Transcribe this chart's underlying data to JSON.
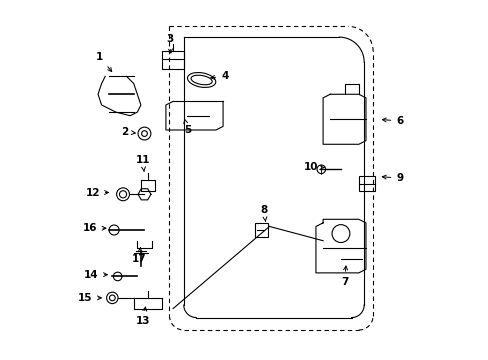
{
  "bg_color": "#ffffff",
  "line_color": "#000000",
  "label_positions": {
    "1": [
      0.095,
      0.845,
      0.04,
      -0.05
    ],
    "2": [
      0.165,
      0.635,
      0.04,
      -0.005
    ],
    "3": [
      0.29,
      0.895,
      0.005,
      -0.05
    ],
    "4": [
      0.445,
      0.79,
      -0.05,
      -0.005
    ],
    "5": [
      0.34,
      0.64,
      -0.01,
      0.04
    ],
    "6": [
      0.935,
      0.665,
      -0.06,
      0.005
    ],
    "7": [
      0.78,
      0.215,
      0.005,
      0.055
    ],
    "8": [
      0.555,
      0.415,
      0.005,
      -0.04
    ],
    "9": [
      0.935,
      0.505,
      -0.06,
      0.005
    ],
    "10": [
      0.685,
      0.535,
      0.04,
      0.0
    ],
    "11": [
      0.215,
      0.555,
      0.005,
      -0.04
    ],
    "12": [
      0.075,
      0.465,
      0.055,
      0.0
    ],
    "13": [
      0.215,
      0.105,
      0.01,
      0.05
    ],
    "14": [
      0.072,
      0.235,
      0.055,
      0.0
    ],
    "15": [
      0.055,
      0.17,
      0.055,
      0.0
    ],
    "16": [
      0.068,
      0.365,
      0.055,
      0.0
    ],
    "17": [
      0.205,
      0.28,
      0.005,
      0.04
    ]
  }
}
